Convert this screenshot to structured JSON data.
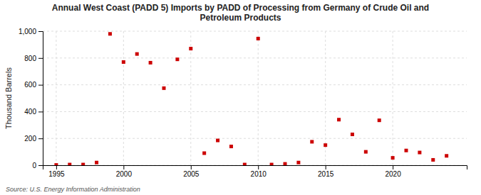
{
  "chart_data": {
    "type": "scatter",
    "title": "Annual West Coast (PADD 5) Imports by PADD of Processing from Germany of Crude Oil and\nPetroleum Products",
    "y_label": "Thousand Barrels",
    "source": "Source: U.S. Energy Information Administration",
    "x": [
      1995,
      1996,
      1997,
      1998,
      1999,
      2000,
      2001,
      2002,
      2003,
      2004,
      2005,
      2006,
      2007,
      2008,
      2009,
      2010,
      2011,
      2012,
      2013,
      2014,
      2015,
      2016,
      2017,
      2018,
      2019,
      2020,
      2021,
      2022,
      2023,
      2024
    ],
    "values": [
      2,
      5,
      5,
      20,
      980,
      770,
      830,
      765,
      575,
      790,
      870,
      90,
      185,
      140,
      5,
      945,
      5,
      10,
      20,
      175,
      150,
      340,
      230,
      100,
      335,
      55,
      110,
      95,
      40,
      70
    ],
    "color": "#cc0000",
    "marker": "square",
    "xlim": [
      1994.0,
      2025.5
    ],
    "ylim": [
      0,
      1000
    ],
    "xticks": [
      1995,
      2000,
      2005,
      2010,
      2015,
      2020
    ],
    "yticks": [
      0,
      200,
      400,
      600,
      800,
      {
        "value": 1000,
        "label": "1,000"
      }
    ],
    "grid": true
  }
}
